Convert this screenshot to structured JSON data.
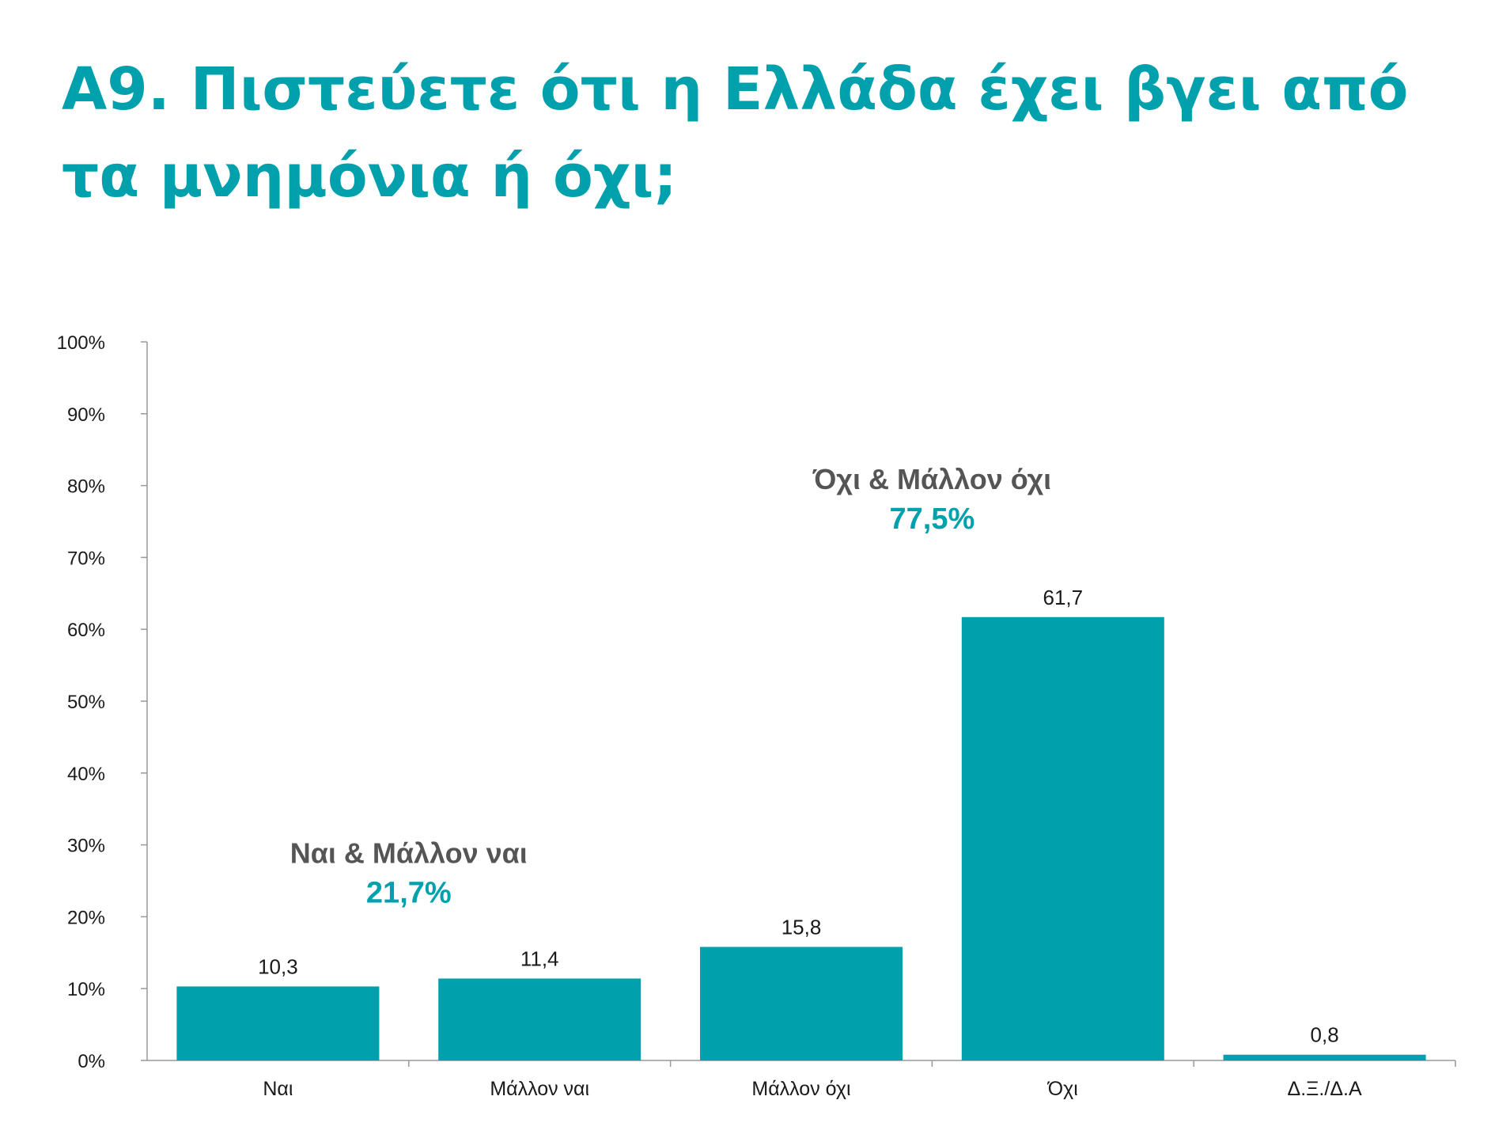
{
  "title": "A9. Πιστεύετε ότι η Ελλάδα έχει βγει από τα μνημόνια ή όχι;",
  "colors": {
    "accent": "#00a1ad",
    "bar": "#00a1ad",
    "group_label": "#555555",
    "axis": "#999999"
  },
  "chart_data": {
    "type": "bar",
    "categories": [
      "Ναι",
      "Μάλλον ναι",
      "Μάλλον όχι",
      "Όχι",
      "Δ.Ξ./Δ.Α"
    ],
    "values": [
      10.3,
      11.4,
      15.8,
      61.7,
      0.8
    ],
    "value_labels": [
      "10,3",
      "11,4",
      "15,8",
      "61,7",
      "0,8"
    ],
    "ylim": [
      0,
      100
    ],
    "yticks": [
      "0%",
      "10%",
      "20%",
      "30%",
      "40%",
      "50%",
      "60%",
      "70%",
      "80%",
      "90%",
      "100%"
    ],
    "xlabel": "",
    "ylabel": "",
    "grid": false,
    "annotations": [
      {
        "text": "Ναι &  Μάλλον ναι",
        "value": "21,7%",
        "over": [
          "Ναι",
          "Μάλλον ναι"
        ],
        "y": 27.5
      },
      {
        "text": "Όχι &  Μάλλον όχι",
        "value": "77,5%",
        "over": [
          "Μάλλον όχι",
          "Όχι"
        ],
        "y": 79.5
      }
    ]
  }
}
